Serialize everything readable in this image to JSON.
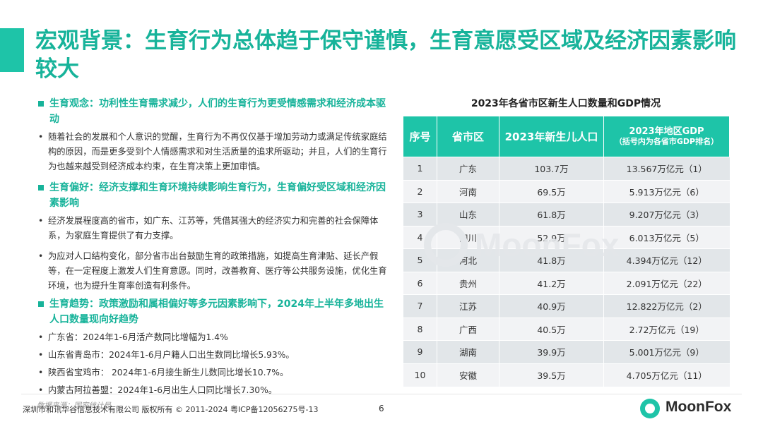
{
  "title": "宏观背景：生育行为总体趋于保守谨慎，生育意愿受区域及经济因素影响较大",
  "sections": [
    {
      "heading": "生育观念：功利性生育需求减少，人们的生育行为更受情感需求和经济成本驱动",
      "bullets": [
        "随着社会的发展和个人意识的觉醒，生育行为不再仅仅基于增加劳动力或满足传统家庭结构的原因，而是更多受到个人情感需求和对生活质量的追求所驱动；并且，人们的生育行为也越来越受到经济成本约束，在生育决策上更加审慎。"
      ]
    },
    {
      "heading": "生育偏好：经济支撑和生育环境持续影响生育行为，生育偏好受区域和经济因素影响",
      "bullets": [
        "经济发展程度高的省市，如广东、江苏等，凭借其强大的经济实力和完善的社会保障体系，为家庭生育提供了有力支撑。",
        "为应对人口结构变化，部分省市出台鼓励生育的政策措施，如提高生育津贴、延长产假等，在一定程度上激发人们生育意愿。同时，改善教育、医疗等公共服务设施，优化生育环境，也为提升生育率创造有利条件。"
      ]
    },
    {
      "heading": "生育趋势：政策激励和属相偏好等多元因素影响下，2024年上半年多地出生人口数量现向好趋势",
      "bullets": [
        "广东省：2024年1-6月活产数同比增幅为1.4%",
        "山东省青岛市：2024年1-6月户籍人口出生数同比增长5.93%。",
        "陕西省宝鸡市： 2024年1-6月接生新生儿数同比增长10.7%。",
        "内蒙古阿拉善盟：2024年1-6月出生人口同比增长7.30%。"
      ]
    }
  ],
  "source": "数据来源：国家统计局",
  "table": {
    "title": "2023年各省市区新生人口数量和GDP情况",
    "headers": {
      "index": "序号",
      "province": "省市区",
      "births": "2023年新生儿人口",
      "gdp_main": "2023年地区GDP",
      "gdp_sub": "（括号内为各省市GDP排名）"
    },
    "rows": [
      {
        "no": "1",
        "province": "广东",
        "births": "103.7万",
        "gdp": "13.567万亿元（1）"
      },
      {
        "no": "2",
        "province": "河南",
        "births": "69.5万",
        "gdp": "5.913万亿元（6）"
      },
      {
        "no": "3",
        "province": "山东",
        "births": "61.8万",
        "gdp": "9.207万亿元（3）"
      },
      {
        "no": "4",
        "province": "四川",
        "births": "52.9万",
        "gdp": "6.013万亿元（5）"
      },
      {
        "no": "5",
        "province": "河北",
        "births": "41.8万",
        "gdp": "4.394万亿元（12）"
      },
      {
        "no": "6",
        "province": "贵州",
        "births": "41.2万",
        "gdp": "2.091万亿元（22）"
      },
      {
        "no": "7",
        "province": "江苏",
        "births": "40.9万",
        "gdp": "12.822万亿元（2）"
      },
      {
        "no": "8",
        "province": "广西",
        "births": "40.5万",
        "gdp": "2.72万亿元（19）"
      },
      {
        "no": "9",
        "province": "湖南",
        "births": "39.9万",
        "gdp": "5.001万亿元（9）"
      },
      {
        "no": "10",
        "province": "安徽",
        "births": "39.5万",
        "gdp": "4.705万亿元（11）"
      }
    ]
  },
  "watermark": "MoonFox",
  "footer": {
    "copyright": "深圳市和讯华谷信息技术有限公司 版权所有 © 2011-2024 粤ICP备12056275号-13",
    "page_number": "6"
  },
  "logo_text": "MoonFox",
  "colors": {
    "accent": "#17b39a",
    "header_bg": "#1ec4a8",
    "row_dark": "#e2e6e9",
    "row_light": "#f2f3f5"
  }
}
